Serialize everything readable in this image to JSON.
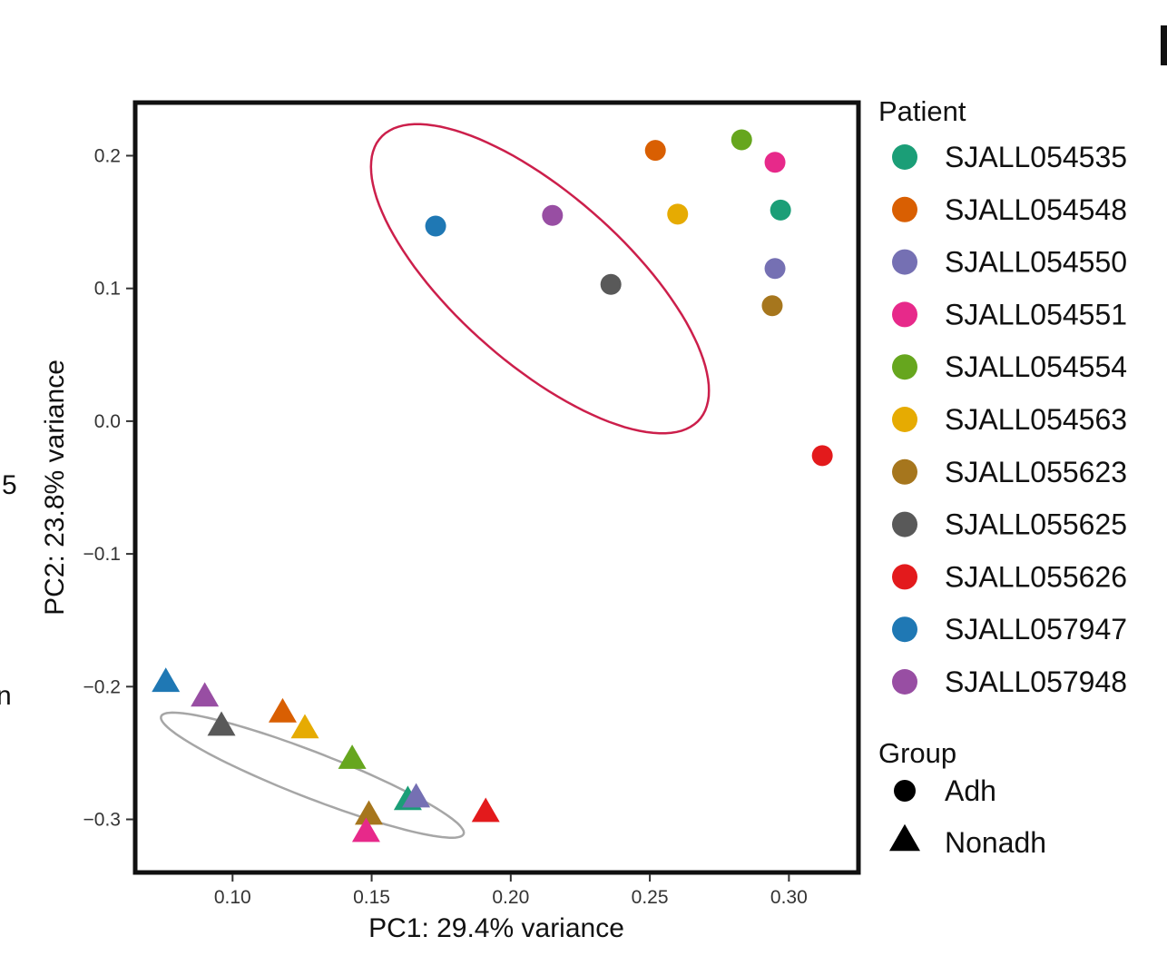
{
  "chart_data": {
    "type": "scatter",
    "title": "",
    "xlabel": "PC1: 29.4% variance",
    "ylabel": "PC2: 23.8% variance",
    "xlim": [
      0.065,
      0.325
    ],
    "ylim": [
      -0.34,
      0.24
    ],
    "x_ticks": [
      0.1,
      0.15,
      0.2,
      0.25,
      0.3
    ],
    "x_tick_labels": [
      "0.10",
      "0.15",
      "0.20",
      "0.25",
      "0.30"
    ],
    "y_ticks": [
      0.2,
      0.1,
      0.0,
      -0.1,
      -0.2,
      -0.3
    ],
    "y_tick_labels": [
      "0.2",
      "0.1",
      "0.0",
      "−0.1",
      "−0.2",
      "−0.3"
    ],
    "grid": false,
    "legend_position": "right",
    "legend_patient_title": "Patient",
    "legend_group_title": "Group",
    "patients": [
      {
        "id": "SJALL054535",
        "color": "#1b9e77"
      },
      {
        "id": "SJALL054548",
        "color": "#d95f02"
      },
      {
        "id": "SJALL054550",
        "color": "#7570b3"
      },
      {
        "id": "SJALL054551",
        "color": "#e7298a"
      },
      {
        "id": "SJALL054554",
        "color": "#66a61e"
      },
      {
        "id": "SJALL054563",
        "color": "#e6ab02"
      },
      {
        "id": "SJALL055623",
        "color": "#a6761d"
      },
      {
        "id": "SJALL055625",
        "color": "#595959"
      },
      {
        "id": "SJALL055626",
        "color": "#e31a1c"
      },
      {
        "id": "SJALL057947",
        "color": "#1f78b4"
      },
      {
        "id": "SJALL057948",
        "color": "#984ea3"
      }
    ],
    "groups": [
      {
        "name": "Adh",
        "shape": "circle"
      },
      {
        "name": "Nonadh",
        "shape": "triangle"
      }
    ],
    "points": [
      {
        "patient": "SJALL054535",
        "group": "Adh",
        "x": 0.297,
        "y": 0.159
      },
      {
        "patient": "SJALL054548",
        "group": "Adh",
        "x": 0.252,
        "y": 0.204
      },
      {
        "patient": "SJALL054550",
        "group": "Adh",
        "x": 0.295,
        "y": 0.115
      },
      {
        "patient": "SJALL054551",
        "group": "Adh",
        "x": 0.295,
        "y": 0.195
      },
      {
        "patient": "SJALL054554",
        "group": "Adh",
        "x": 0.283,
        "y": 0.212
      },
      {
        "patient": "SJALL054563",
        "group": "Adh",
        "x": 0.26,
        "y": 0.156
      },
      {
        "patient": "SJALL055623",
        "group": "Adh",
        "x": 0.294,
        "y": 0.087
      },
      {
        "patient": "SJALL055625",
        "group": "Adh",
        "x": 0.236,
        "y": 0.103
      },
      {
        "patient": "SJALL055626",
        "group": "Adh",
        "x": 0.312,
        "y": -0.026
      },
      {
        "patient": "SJALL057947",
        "group": "Adh",
        "x": 0.173,
        "y": 0.147
      },
      {
        "patient": "SJALL057948",
        "group": "Adh",
        "x": 0.215,
        "y": 0.155
      },
      {
        "patient": "SJALL057947",
        "group": "Nonadh",
        "x": 0.076,
        "y": -0.197
      },
      {
        "patient": "SJALL057948",
        "group": "Nonadh",
        "x": 0.09,
        "y": -0.208
      },
      {
        "patient": "SJALL055625",
        "group": "Nonadh",
        "x": 0.096,
        "y": -0.23
      },
      {
        "patient": "SJALL054548",
        "group": "Nonadh",
        "x": 0.118,
        "y": -0.22
      },
      {
        "patient": "SJALL054563",
        "group": "Nonadh",
        "x": 0.126,
        "y": -0.232
      },
      {
        "patient": "SJALL054554",
        "group": "Nonadh",
        "x": 0.143,
        "y": -0.255
      },
      {
        "patient": "SJALL055623",
        "group": "Nonadh",
        "x": 0.149,
        "y": -0.297
      },
      {
        "patient": "SJALL054551",
        "group": "Nonadh",
        "x": 0.148,
        "y": -0.31
      },
      {
        "patient": "SJALL054535",
        "group": "Nonadh",
        "x": 0.163,
        "y": -0.286
      },
      {
        "patient": "SJALL054550",
        "group": "Nonadh",
        "x": 0.166,
        "y": -0.284
      },
      {
        "patient": "SJALL055626",
        "group": "Nonadh",
        "x": 0.191,
        "y": -0.295
      }
    ],
    "ellipses": [
      {
        "group": "Adh",
        "color": "#cc1f4b",
        "cx": 0.2105,
        "cy": 0.1073,
        "rx_x": 0.0555,
        "rx_y": -0.1097,
        "ry_x": 0.0247,
        "ry_y": 0.0391
      },
      {
        "group": "Nonadh",
        "color": "#a6a6a6",
        "cx": 0.1287,
        "cy": -0.2667,
        "rx_x": 0.0543,
        "rx_y": -0.0446,
        "ry_x": -0.004,
        "ry_y": -0.0152
      }
    ]
  },
  "edge_fragments": [
    "5",
    "n"
  ]
}
